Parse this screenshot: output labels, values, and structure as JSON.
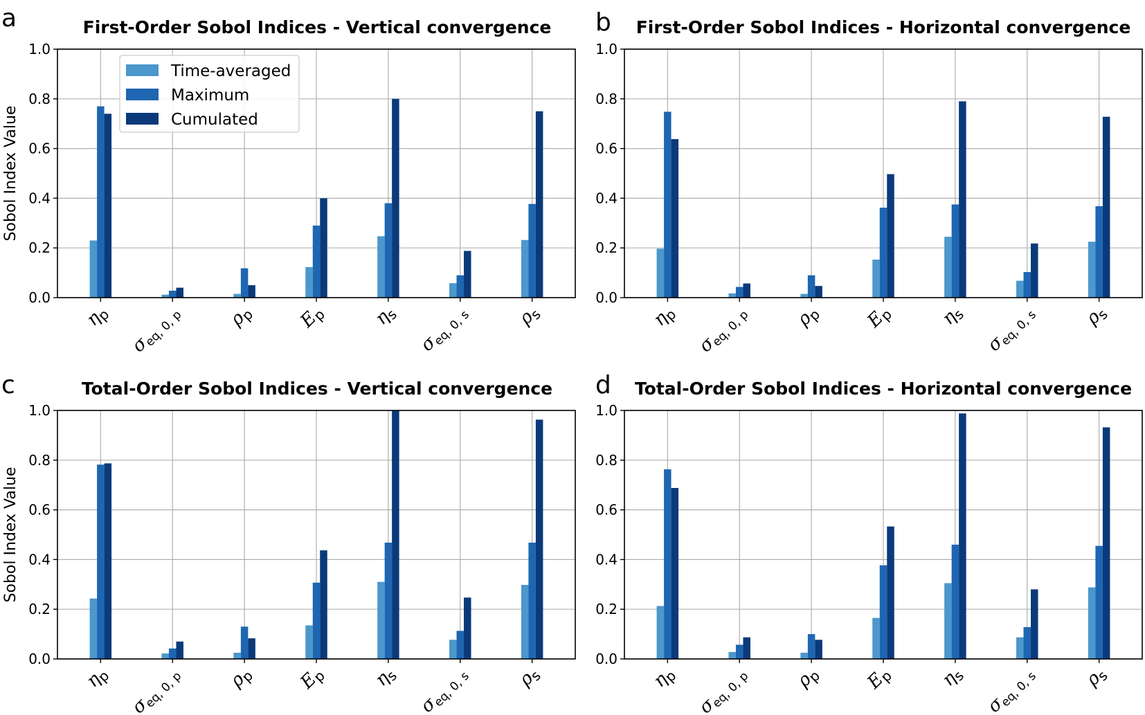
{
  "chart_data": [
    {
      "type": "bar",
      "panel_label": "a",
      "title": "First-Order Sobol Indices - Vertical convergence",
      "ylabel": "Sobol Index Value",
      "xlabel": "",
      "ylim": [
        0,
        1.0
      ],
      "yticks": [
        "0.0",
        "0.2",
        "0.4",
        "0.6",
        "0.8",
        "1.0"
      ],
      "grid": true,
      "legend": "top-left",
      "categories": [
        "ηp",
        "σeq,0,p",
        "ρp",
        "Ep",
        "ηs",
        "σeq,0,s",
        "ρs"
      ],
      "series": [
        {
          "name": "Time-averaged",
          "values": [
            0.23,
            0.012,
            0.015,
            0.123,
            0.247,
            0.058,
            0.232
          ]
        },
        {
          "name": "Maximum",
          "values": [
            0.77,
            0.028,
            0.118,
            0.29,
            0.38,
            0.09,
            0.377
          ]
        },
        {
          "name": "Cumulated",
          "values": [
            0.74,
            0.04,
            0.05,
            0.4,
            0.8,
            0.188,
            0.75
          ]
        }
      ]
    },
    {
      "type": "bar",
      "panel_label": "b",
      "title": "First-Order Sobol Indices - Horizontal convergence",
      "ylabel": "",
      "xlabel": "",
      "ylim": [
        0,
        1.0
      ],
      "yticks": [
        "0.0",
        "0.2",
        "0.4",
        "0.6",
        "0.8",
        "1.0"
      ],
      "grid": true,
      "categories": [
        "ηp",
        "σeq,0,p",
        "ρp",
        "Ep",
        "ηs",
        "σeq,0,s",
        "ρs"
      ],
      "series": [
        {
          "name": "Time-averaged",
          "values": [
            0.197,
            0.017,
            0.015,
            0.153,
            0.245,
            0.068,
            0.225
          ]
        },
        {
          "name": "Maximum",
          "values": [
            0.748,
            0.043,
            0.09,
            0.362,
            0.375,
            0.103,
            0.368
          ]
        },
        {
          "name": "Cumulated",
          "values": [
            0.638,
            0.057,
            0.047,
            0.497,
            0.79,
            0.218,
            0.728
          ]
        }
      ]
    },
    {
      "type": "bar",
      "panel_label": "c",
      "title": "Total-Order Sobol Indices - Vertical convergence",
      "ylabel": "Sobol Index Value",
      "xlabel": "",
      "ylim": [
        0,
        1.0
      ],
      "yticks": [
        "0.0",
        "0.2",
        "0.4",
        "0.6",
        "0.8",
        "1.0"
      ],
      "grid": true,
      "categories": [
        "ηp",
        "σeq,0,p",
        "ρp",
        "Ep",
        "ηs",
        "σeq,0,s",
        "ρs"
      ],
      "series": [
        {
          "name": "Time-averaged",
          "values": [
            0.243,
            0.022,
            0.025,
            0.135,
            0.31,
            0.077,
            0.298
          ]
        },
        {
          "name": "Maximum",
          "values": [
            0.782,
            0.042,
            0.13,
            0.307,
            0.468,
            0.113,
            0.468
          ]
        },
        {
          "name": "Cumulated",
          "values": [
            0.787,
            0.07,
            0.083,
            0.437,
            1.0,
            0.247,
            0.963
          ]
        }
      ]
    },
    {
      "type": "bar",
      "panel_label": "d",
      "title": "Total-Order Sobol Indices - Horizontal convergence",
      "ylabel": "",
      "xlabel": "",
      "ylim": [
        0,
        1.0
      ],
      "yticks": [
        "0.0",
        "0.2",
        "0.4",
        "0.6",
        "0.8",
        "1.0"
      ],
      "grid": true,
      "categories": [
        "ηp",
        "σeq,0,p",
        "ρp",
        "Ep",
        "ηs",
        "σeq,0,s",
        "ρs"
      ],
      "series": [
        {
          "name": "Time-averaged",
          "values": [
            0.213,
            0.028,
            0.025,
            0.165,
            0.305,
            0.087,
            0.288
          ]
        },
        {
          "name": "Maximum",
          "values": [
            0.763,
            0.057,
            0.1,
            0.377,
            0.46,
            0.128,
            0.455
          ]
        },
        {
          "name": "Cumulated",
          "values": [
            0.688,
            0.087,
            0.077,
            0.533,
            0.988,
            0.28,
            0.932
          ]
        }
      ]
    }
  ],
  "colors": {
    "Time-averaged": "#4c97cc",
    "Maximum": "#1e66b2",
    "Cumulated": "#0b3a7a",
    "grid": "#b0b0b0"
  }
}
